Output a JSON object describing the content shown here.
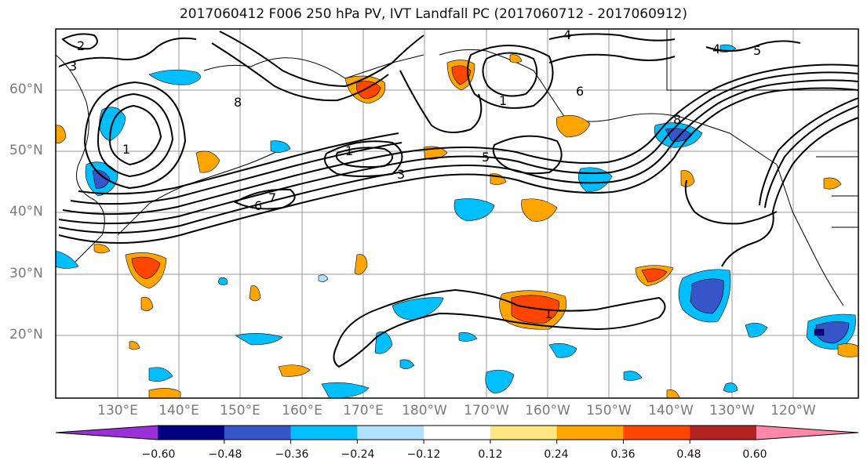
{
  "title": "2017060412 F006 250 hPa PV, IVT Landfall PC (2017060712 - 2017060912)",
  "map": {
    "projection": "PlateCarree",
    "lat_labels": [
      "60°N",
      "50°N",
      "40°N",
      "30°N",
      "20°N"
    ],
    "lon_labels": [
      "130°E",
      "140°E",
      "150°E",
      "160°E",
      "170°E",
      "180°W",
      "170°W",
      "160°W",
      "150°W",
      "140°W",
      "130°W",
      "120°W"
    ],
    "grid": true,
    "pv_contour_labels": [
      "2",
      "3",
      "4",
      "8",
      "1",
      "6",
      "7",
      "5",
      "3",
      "1",
      "8",
      "6",
      "4",
      "5",
      "1"
    ],
    "anomaly_label": "1"
  },
  "colorbar": {
    "ticks": [
      "−0.60",
      "−0.48",
      "−0.36",
      "−0.24",
      "−0.12",
      "0.12",
      "0.24",
      "0.36",
      "0.48",
      "0.60"
    ],
    "colors": [
      "#9b30d9",
      "#000080",
      "#3655c8",
      "#00bfff",
      "#b0e2ff",
      "#ffffff",
      "#ffe680",
      "#ffa500",
      "#ff4500",
      "#b22222",
      "#ff88aa"
    ],
    "extend": "both"
  }
}
